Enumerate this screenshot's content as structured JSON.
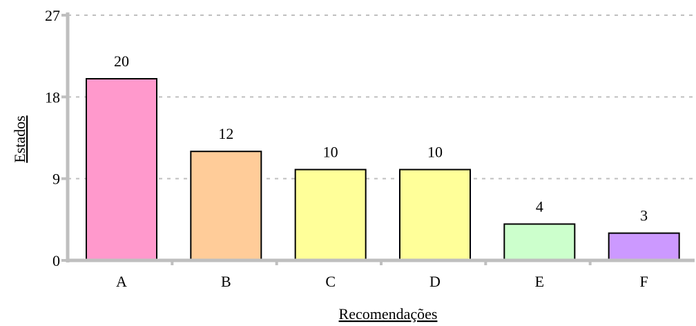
{
  "chart_data": {
    "type": "bar",
    "title": "",
    "xlabel": "Recomendações",
    "ylabel": "Estados",
    "categories": [
      "A",
      "B",
      "C",
      "D",
      "E",
      "F"
    ],
    "values": [
      20,
      12,
      10,
      10,
      4,
      3
    ],
    "data_labels": [
      "20",
      "12",
      "10",
      "10",
      "4",
      "3"
    ],
    "colors": [
      "#ff99cc",
      "#ffcc99",
      "#ffff99",
      "#ffff99",
      "#ccffcc",
      "#cc99ff"
    ],
    "ylim": [
      0,
      27
    ],
    "yticks": [
      0,
      9,
      18,
      27
    ],
    "ytick_labels": [
      "0",
      "9",
      "18",
      "27"
    ],
    "grid": true,
    "legend": "none"
  }
}
